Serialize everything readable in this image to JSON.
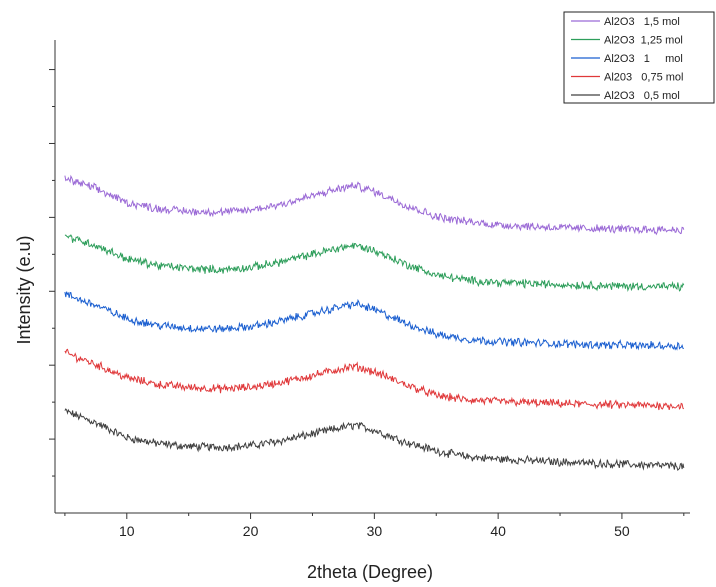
{
  "chart_data": {
    "type": "line",
    "title": "",
    "xlabel": "2theta (Degree)",
    "ylabel": "Intensity (e.u)",
    "xlim": [
      4.2,
      55.5
    ],
    "ylim": [
      0,
      6.4
    ],
    "x_ticks": [
      "10",
      "20",
      "30",
      "40",
      "50"
    ],
    "y_ticks_labeled": false,
    "grid": false,
    "legend_position": "top-right",
    "x": [
      5,
      7.5,
      10,
      12.5,
      15,
      17.5,
      20,
      22.5,
      25,
      27.5,
      28.5,
      30,
      32.5,
      35,
      37.5,
      40,
      45,
      50,
      55
    ],
    "series": [
      {
        "name": "Al2O3   0,5 mol",
        "color": "#404040",
        "values": [
          1.38,
          1.22,
          1.02,
          0.94,
          0.9,
          0.89,
          0.91,
          0.98,
          1.07,
          1.16,
          1.19,
          1.12,
          0.96,
          0.84,
          0.76,
          0.73,
          0.69,
          0.66,
          0.63
        ]
      },
      {
        "name": "Al203   0,75 mol",
        "color": "#e0383a",
        "values": [
          2.17,
          2.01,
          1.83,
          1.74,
          1.7,
          1.68,
          1.7,
          1.77,
          1.86,
          1.96,
          1.98,
          1.91,
          1.74,
          1.59,
          1.53,
          1.51,
          1.48,
          1.46,
          1.45
        ]
      },
      {
        "name": "Al2O3   1     mol",
        "color": "#1b5fd0",
        "values": [
          2.96,
          2.81,
          2.63,
          2.54,
          2.5,
          2.49,
          2.52,
          2.6,
          2.7,
          2.8,
          2.83,
          2.75,
          2.57,
          2.42,
          2.35,
          2.32,
          2.29,
          2.27,
          2.26
        ]
      },
      {
        "name": "Al2O3  1,25 mol",
        "color": "#2e9e5b",
        "values": [
          3.75,
          3.62,
          3.44,
          3.35,
          3.31,
          3.29,
          3.32,
          3.4,
          3.5,
          3.6,
          3.62,
          3.55,
          3.37,
          3.22,
          3.15,
          3.12,
          3.09,
          3.07,
          3.06
        ]
      },
      {
        "name": "Al2O3   1,5 mol",
        "color": "#9b6ad6",
        "values": [
          4.53,
          4.39,
          4.2,
          4.12,
          4.08,
          4.07,
          4.1,
          4.18,
          4.29,
          4.4,
          4.43,
          4.35,
          4.17,
          4.01,
          3.94,
          3.9,
          3.86,
          3.84,
          3.83
        ]
      }
    ]
  }
}
